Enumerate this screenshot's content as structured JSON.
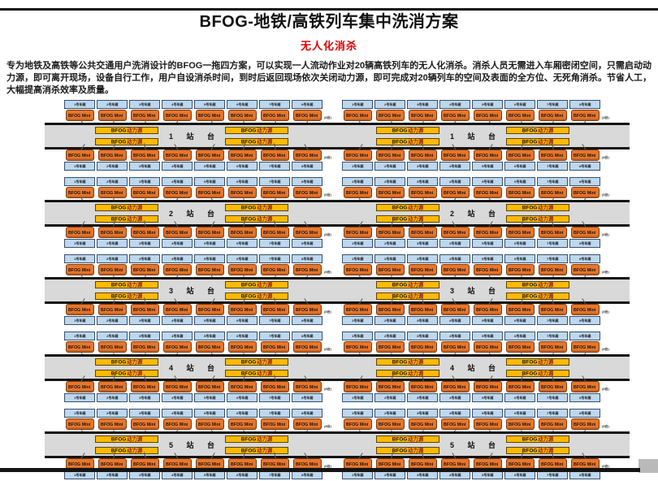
{
  "title": "BFOG-地铁/高铁列车集中洗消方案",
  "subtitle": "无人化消杀",
  "description": "专为地铁及高铁等公共交通用户洗消设计的BFOG一拖四方案，可以实现一人流动作业对20辆高铁列车的无人化消杀。消杀人员无需进入车厢密闭空间，只需启动动力源，即可离开现场，设备自行工作，用户自设消杀时间，到时后返回现场依次关闭动力源，即可完成对20辆列车的空间及表面的全方位、无死角消杀。节省人工，大幅提高消杀效率及质量。",
  "labels": {
    "mini_unit": "BFOG Mini",
    "power_prefix": "BFOG",
    "power_suffix": "动力源",
    "car_suffix": "号车厢",
    "group_end": "(8台)"
  },
  "car_numbers": [
    "1",
    "2",
    "3",
    "4",
    "5",
    "6",
    "7",
    "8"
  ],
  "platforms": [
    {
      "label": "1 站 台"
    },
    {
      "label": "2 站 台"
    },
    {
      "label": "3 站 台"
    },
    {
      "label": "4 站 台"
    },
    {
      "label": "5 站 台"
    }
  ],
  "layout_counts": {
    "platforms": 5,
    "tracks_per_platform": 2,
    "groups_per_track": 2,
    "cars_per_group": 8,
    "power_sources_per_platform_side": 4
  },
  "colors": {
    "subtitle_red": "#e00000",
    "mini_orange": "#e8762b",
    "mini_border": "#7a3a10",
    "car_blue": "#bdd7ee",
    "power_yellow": "#ffb900",
    "power_text_red": "#8b1a1a",
    "platform_gray": "#d9d9d9",
    "frame_black": "#141414"
  }
}
